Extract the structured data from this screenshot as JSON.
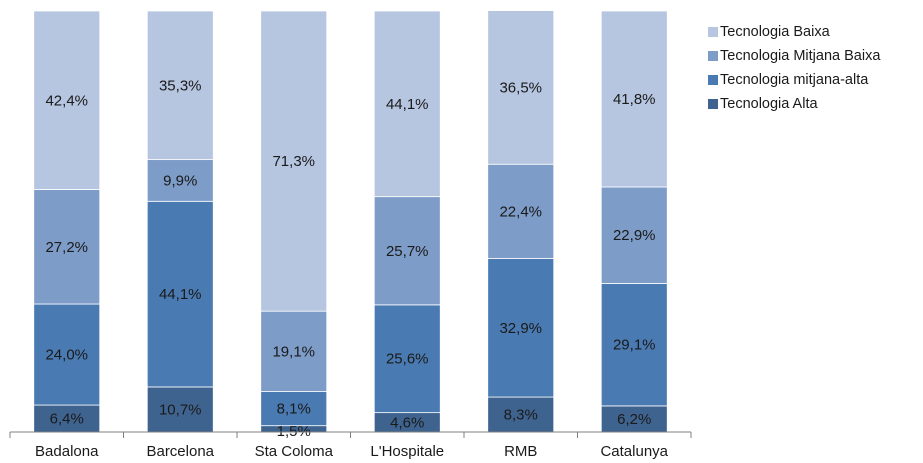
{
  "chart_data": {
    "type": "bar",
    "stacked": true,
    "percent_stacked": true,
    "categories": [
      "Badalona",
      "Barcelona",
      "Sta Coloma",
      "L'Hospitale",
      "RMB",
      "Catalunya"
    ],
    "series": [
      {
        "name": "Tecnologia Alta",
        "color": "#3f638f",
        "values": [
          6.4,
          10.7,
          1.5,
          4.6,
          8.3,
          6.2
        ],
        "labels": [
          "6,4%",
          "10,7%",
          "1,5%",
          "4,6%",
          "8,3%",
          "6,2%"
        ]
      },
      {
        "name": "Tecnologia mitjana-alta",
        "color": "#4a7ab2",
        "values": [
          24.0,
          44.1,
          8.1,
          25.6,
          32.9,
          29.1
        ],
        "labels": [
          "24,0%",
          "44,1%",
          "8,1%",
          "25,6%",
          "32,9%",
          "29,1%"
        ]
      },
      {
        "name": "Tecnologia Mitjana Baixa",
        "color": "#7d9cc8",
        "values": [
          27.2,
          9.9,
          19.1,
          25.7,
          22.4,
          22.9
        ],
        "labels": [
          "27,2%",
          "9,9%",
          "19,1%",
          "25,7%",
          "22,4%",
          "22,9%"
        ]
      },
      {
        "name": "Tecnologia Baixa",
        "color": "#b6c5e0",
        "values": [
          42.4,
          35.3,
          71.3,
          44.1,
          36.5,
          41.8
        ],
        "labels": [
          "42,4%",
          "35,3%",
          "71,3%",
          "44,1%",
          "36,5%",
          "41,8%"
        ]
      }
    ],
    "legend_order": [
      "Tecnologia Baixa",
      "Tecnologia Mitjana Baixa",
      "Tecnologia mitjana-alta",
      "Tecnologia Alta"
    ],
    "legend_position": "right",
    "ylim": [
      0,
      100
    ],
    "grid": false
  }
}
